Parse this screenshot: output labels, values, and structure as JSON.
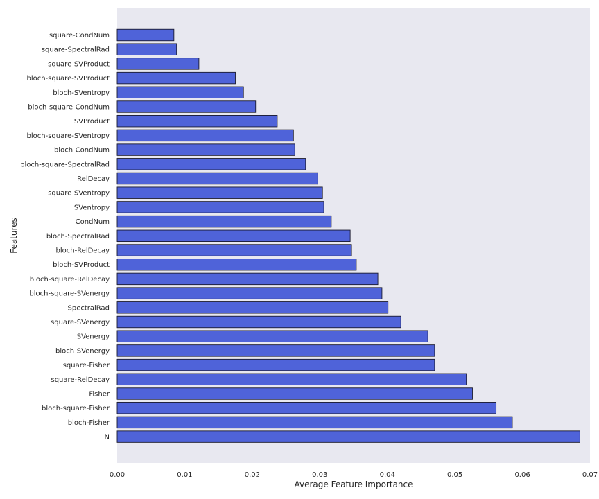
{
  "chart_data": {
    "type": "bar",
    "orientation": "horizontal",
    "xlabel": "Average Feature Importance",
    "ylabel": "Features",
    "xlim": [
      0.0,
      0.07
    ],
    "xticks": [
      "0.00",
      "0.01",
      "0.02",
      "0.03",
      "0.04",
      "0.05",
      "0.06",
      "0.07"
    ],
    "grid": false,
    "categories": [
      "square-CondNum",
      "square-SpectralRad",
      "square-SVProduct",
      "bloch-square-SVProduct",
      "bloch-SVentropy",
      "bloch-square-CondNum",
      "SVProduct",
      "bloch-square-SVentropy",
      "bloch-CondNum",
      "bloch-square-SpectralRad",
      "RelDecay",
      "square-SVentropy",
      "SVentropy",
      "CondNum",
      "bloch-SpectralRad",
      "bloch-RelDecay",
      "bloch-SVProduct",
      "bloch-square-RelDecay",
      "bloch-square-SVenergy",
      "SpectralRad",
      "square-SVenergy",
      "SVenergy",
      "bloch-SVenergy",
      "square-Fisher",
      "square-RelDecay",
      "Fisher",
      "bloch-square-Fisher",
      "bloch-Fisher",
      "N"
    ],
    "values": [
      0.0084,
      0.0088,
      0.0121,
      0.0175,
      0.0187,
      0.0205,
      0.0237,
      0.0261,
      0.0263,
      0.0279,
      0.0297,
      0.0304,
      0.0306,
      0.0317,
      0.0345,
      0.0347,
      0.0354,
      0.0386,
      0.0392,
      0.0401,
      0.042,
      0.046,
      0.047,
      0.047,
      0.0517,
      0.0526,
      0.0561,
      0.0585,
      0.0685
    ],
    "colors": {
      "bar_fill": "#4f63d9",
      "bar_edge": "#1a1a2e",
      "plot_background": "#e8e8f0",
      "text": "#262626"
    }
  }
}
